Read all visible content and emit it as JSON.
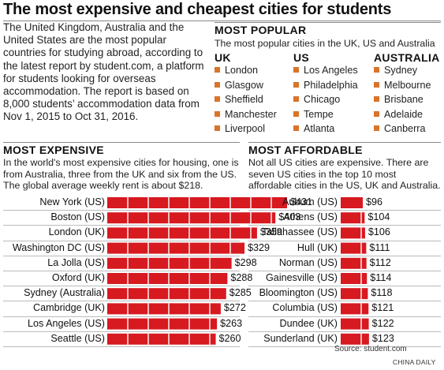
{
  "title": "The most expensive and cheapest cities for students",
  "intro": "The United Kingdom, Australia and the United States are the most popular countries for studying abroad, according to the latest report by student.com, a platform for students looking for overseas accommodation. The report is based on 8,000 students’ accommodation data from Nov 1, 2015 to Oct 31, 2016.",
  "popular": {
    "title": "MOST POPULAR",
    "subtitle": "The most popular cities in the UK, US and Australia",
    "columns": [
      {
        "head": "UK",
        "cities": [
          "London",
          "Glasgow",
          "Sheffield",
          "Manchester",
          "Liverpool"
        ]
      },
      {
        "head": "US",
        "cities": [
          "Los Angeles",
          "Philadelphia",
          "Chicago",
          "Tempe",
          "Atlanta"
        ]
      },
      {
        "head": "AUSTRALIA",
        "cities": [
          "Sydney",
          "Melbourne",
          "Brisbane",
          "Adelaide",
          "Canberra"
        ]
      }
    ],
    "marker_color": "#d9742b"
  },
  "expensive": {
    "title": "MOST EXPENSIVE",
    "description": "In the world's most expensive cities for housing, one is from Australia, three from the UK and six from the US. The global average weekly rent is about $218."
  },
  "affordable": {
    "title": "MOST AFFORDABLE",
    "description": "Not all US cities are expensive. There are seven US cities in the top 10 most affordable cities in the US, UK and Australia."
  },
  "source": "Source: student.com",
  "credit": "CHINA DAILY",
  "chart_data": [
    {
      "type": "bar",
      "orientation": "horizontal",
      "title": "MOST EXPENSIVE",
      "categories": [
        "New York (US)",
        "Boston (US)",
        "London (UK)",
        "Washington DC (US)",
        "La Jolla (US)",
        "Oxford (UK)",
        "Sydney (Australia)",
        "Cambridge (UK)",
        "Los Angeles (US)",
        "Seattle (US)"
      ],
      "values": [
        431,
        403,
        359,
        329,
        298,
        288,
        285,
        272,
        263,
        260
      ],
      "labels": [
        "$431",
        "$403",
        "$359",
        "$329",
        "$298",
        "$288",
        "$285",
        "$272",
        "$263",
        "$260"
      ],
      "color": "#d71920"
    },
    {
      "type": "bar",
      "orientation": "horizontal",
      "title": "MOST AFFORDABLE",
      "categories": [
        "Auburn (US)",
        "Athens (US)",
        "Tallahassee (US)",
        "Hull (UK)",
        "Norman (US)",
        "Gainesville (US)",
        "Bloomington (US)",
        "Columbia (US)",
        "Dundee (UK)",
        "Sunderland (UK)"
      ],
      "values": [
        96,
        104,
        106,
        111,
        112,
        114,
        118,
        121,
        122,
        123
      ],
      "labels": [
        "$96",
        "$104",
        "$106",
        "$111",
        "$112",
        "$114",
        "$118",
        "$121",
        "$122",
        "$123"
      ],
      "color": "#d71920"
    }
  ]
}
